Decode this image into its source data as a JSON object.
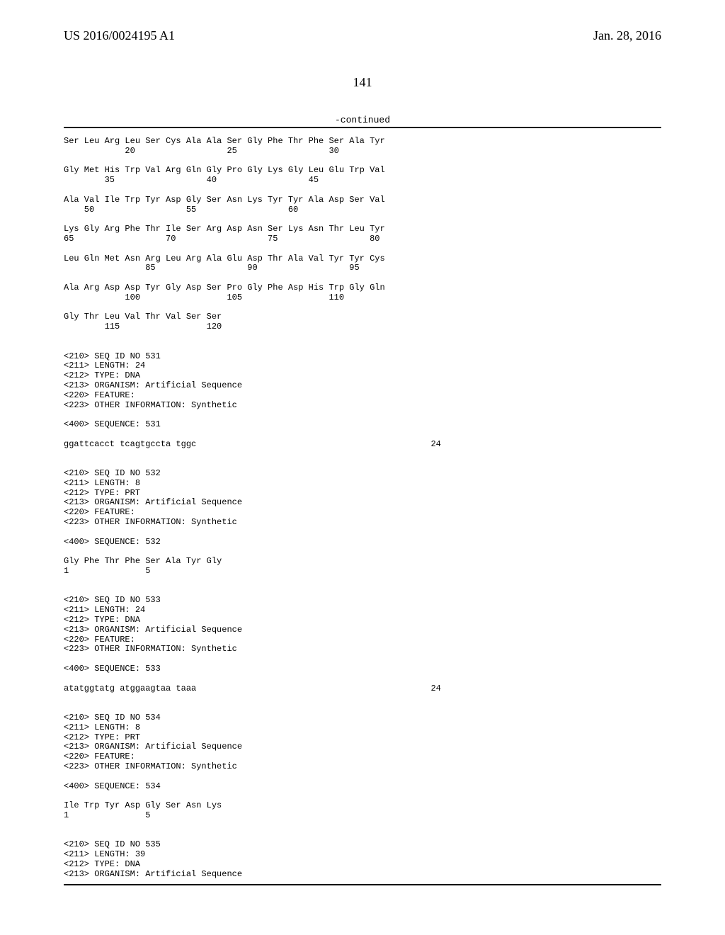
{
  "header": {
    "left": "US 2016/0024195 A1",
    "right": "Jan. 28, 2016"
  },
  "page_number": "141",
  "continued_label": "-continued",
  "seq_lines": [
    "Ser Leu Arg Leu Ser Cys Ala Ala Ser Gly Phe Thr Phe Ser Ala Tyr",
    "            20                  25                  30",
    "",
    "Gly Met His Trp Val Arg Gln Gly Pro Gly Lys Gly Leu Glu Trp Val",
    "        35                  40                  45",
    "",
    "Ala Val Ile Trp Tyr Asp Gly Ser Asn Lys Tyr Tyr Ala Asp Ser Val",
    "    50                  55                  60",
    "",
    "Lys Gly Arg Phe Thr Ile Ser Arg Asp Asn Ser Lys Asn Thr Leu Tyr",
    "65                  70                  75                  80",
    "",
    "Leu Gln Met Asn Arg Leu Arg Ala Glu Asp Thr Ala Val Tyr Tyr Cys",
    "                85                  90                  95",
    "",
    "Ala Arg Asp Asp Tyr Gly Asp Ser Pro Gly Phe Asp His Trp Gly Gln",
    "            100                 105                 110",
    "",
    "Gly Thr Leu Val Thr Val Ser Ser",
    "        115                 120",
    "",
    "",
    "<210> SEQ ID NO 531",
    "<211> LENGTH: 24",
    "<212> TYPE: DNA",
    "<213> ORGANISM: Artificial Sequence",
    "<220> FEATURE:",
    "<223> OTHER INFORMATION: Synthetic",
    "",
    "<400> SEQUENCE: 531",
    "",
    "ggattcacct tcagtgccta tggc                                              24",
    "",
    "",
    "<210> SEQ ID NO 532",
    "<211> LENGTH: 8",
    "<212> TYPE: PRT",
    "<213> ORGANISM: Artificial Sequence",
    "<220> FEATURE:",
    "<223> OTHER INFORMATION: Synthetic",
    "",
    "<400> SEQUENCE: 532",
    "",
    "Gly Phe Thr Phe Ser Ala Tyr Gly",
    "1               5",
    "",
    "",
    "<210> SEQ ID NO 533",
    "<211> LENGTH: 24",
    "<212> TYPE: DNA",
    "<213> ORGANISM: Artificial Sequence",
    "<220> FEATURE:",
    "<223> OTHER INFORMATION: Synthetic",
    "",
    "<400> SEQUENCE: 533",
    "",
    "atatggtatg atggaagtaa taaa                                              24",
    "",
    "",
    "<210> SEQ ID NO 534",
    "<211> LENGTH: 8",
    "<212> TYPE: PRT",
    "<213> ORGANISM: Artificial Sequence",
    "<220> FEATURE:",
    "<223> OTHER INFORMATION: Synthetic",
    "",
    "<400> SEQUENCE: 534",
    "",
    "Ile Trp Tyr Asp Gly Ser Asn Lys",
    "1               5",
    "",
    "",
    "<210> SEQ ID NO 535",
    "<211> LENGTH: 39",
    "<212> TYPE: DNA",
    "<213> ORGANISM: Artificial Sequence"
  ]
}
